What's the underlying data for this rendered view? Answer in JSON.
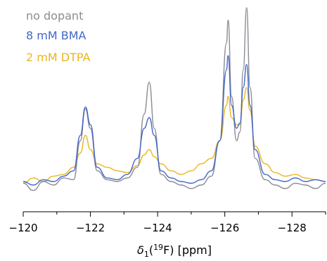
{
  "chart_data": {
    "type": "line",
    "title": "",
    "xlabel": {
      "prefix": "δ",
      "sub": "1",
      "paren_open": "(",
      "sup": "19",
      "element": "F",
      "paren_close": ")",
      "unit": " [ppm]"
    },
    "ylabel": "",
    "xlim": [
      -120,
      -129
    ],
    "x_reversed": true,
    "y_axis_visible": false,
    "grid": false,
    "legend_placement": "top-left",
    "x_ticks": [
      {
        "value": -120,
        "label": "−120"
      },
      {
        "value": -122,
        "label": "−122"
      },
      {
        "value": -124,
        "label": "−124"
      },
      {
        "value": -126,
        "label": "−126"
      },
      {
        "value": -128,
        "label": "−128"
      }
    ],
    "x_minor_ticks": [
      -121,
      -123,
      -125,
      -127,
      -129
    ],
    "series": [
      {
        "name": "no dopant",
        "color": "#8c8c94",
        "points": [
          [
            -120.0,
            0.01
          ],
          [
            -120.3,
            -0.03
          ],
          [
            -120.6,
            0.02
          ],
          [
            -120.9,
            0.0
          ],
          [
            -121.2,
            0.04
          ],
          [
            -121.5,
            0.03
          ],
          [
            -121.7,
            0.25
          ],
          [
            -121.85,
            0.43
          ],
          [
            -122.0,
            0.32
          ],
          [
            -122.2,
            0.08
          ],
          [
            -122.5,
            0.03
          ],
          [
            -122.8,
            0.02
          ],
          [
            -123.1,
            0.04
          ],
          [
            -123.4,
            0.1
          ],
          [
            -123.6,
            0.4
          ],
          [
            -123.75,
            0.58
          ],
          [
            -123.9,
            0.32
          ],
          [
            -124.1,
            0.06
          ],
          [
            -124.4,
            0.02
          ],
          [
            -124.7,
            0.0
          ],
          [
            -125.0,
            -0.02
          ],
          [
            -125.3,
            0.0
          ],
          [
            -125.6,
            0.05
          ],
          [
            -125.85,
            0.25
          ],
          [
            -126.05,
            0.8
          ],
          [
            -126.1,
            0.93
          ],
          [
            -126.2,
            0.5
          ],
          [
            -126.35,
            0.25
          ],
          [
            -126.45,
            0.3
          ],
          [
            -126.55,
            0.65
          ],
          [
            -126.65,
            1.0
          ],
          [
            -126.75,
            0.55
          ],
          [
            -126.9,
            0.15
          ],
          [
            -127.2,
            0.03
          ],
          [
            -127.5,
            0.0
          ],
          [
            -127.8,
            -0.02
          ],
          [
            -128.1,
            0.01
          ],
          [
            -128.4,
            0.0
          ],
          [
            -128.7,
            -0.02
          ],
          [
            -129.0,
            0.01
          ]
        ]
      },
      {
        "name": "8 mM BMA",
        "color": "#4267c8",
        "points": [
          [
            -120.0,
            0.02
          ],
          [
            -120.3,
            0.0
          ],
          [
            -120.6,
            0.03
          ],
          [
            -120.9,
            0.02
          ],
          [
            -121.2,
            0.05
          ],
          [
            -121.5,
            0.08
          ],
          [
            -121.7,
            0.28
          ],
          [
            -121.85,
            0.44
          ],
          [
            -122.0,
            0.34
          ],
          [
            -122.2,
            0.1
          ],
          [
            -122.5,
            0.04
          ],
          [
            -122.8,
            0.03
          ],
          [
            -123.1,
            0.06
          ],
          [
            -123.4,
            0.15
          ],
          [
            -123.6,
            0.32
          ],
          [
            -123.75,
            0.38
          ],
          [
            -123.9,
            0.28
          ],
          [
            -124.1,
            0.08
          ],
          [
            -124.4,
            0.04
          ],
          [
            -124.7,
            0.02
          ],
          [
            -125.0,
            0.01
          ],
          [
            -125.3,
            0.03
          ],
          [
            -125.6,
            0.08
          ],
          [
            -125.85,
            0.25
          ],
          [
            -126.05,
            0.65
          ],
          [
            -126.1,
            0.73
          ],
          [
            -126.2,
            0.45
          ],
          [
            -126.35,
            0.32
          ],
          [
            -126.45,
            0.35
          ],
          [
            -126.55,
            0.55
          ],
          [
            -126.65,
            0.68
          ],
          [
            -126.75,
            0.45
          ],
          [
            -126.9,
            0.2
          ],
          [
            -127.2,
            0.06
          ],
          [
            -127.5,
            0.03
          ],
          [
            -127.8,
            0.02
          ],
          [
            -128.1,
            0.04
          ],
          [
            -128.4,
            0.02
          ],
          [
            -128.7,
            0.03
          ],
          [
            -129.0,
            0.02
          ]
        ]
      },
      {
        "name": "2 mM DTPA",
        "color": "#eab61f",
        "points": [
          [
            -120.0,
            0.01
          ],
          [
            -120.3,
            0.04
          ],
          [
            -120.6,
            0.02
          ],
          [
            -120.9,
            0.05
          ],
          [
            -121.2,
            0.06
          ],
          [
            -121.5,
            0.1
          ],
          [
            -121.7,
            0.18
          ],
          [
            -121.85,
            0.28
          ],
          [
            -122.0,
            0.2
          ],
          [
            -122.2,
            0.12
          ],
          [
            -122.5,
            0.1
          ],
          [
            -122.8,
            0.08
          ],
          [
            -123.1,
            0.07
          ],
          [
            -123.4,
            0.11
          ],
          [
            -123.6,
            0.17
          ],
          [
            -123.75,
            0.2
          ],
          [
            -123.9,
            0.16
          ],
          [
            -124.1,
            0.12
          ],
          [
            -124.4,
            0.08
          ],
          [
            -124.7,
            0.06
          ],
          [
            -125.0,
            0.08
          ],
          [
            -125.3,
            0.12
          ],
          [
            -125.6,
            0.15
          ],
          [
            -125.85,
            0.25
          ],
          [
            -126.05,
            0.45
          ],
          [
            -126.1,
            0.5
          ],
          [
            -126.2,
            0.38
          ],
          [
            -126.35,
            0.34
          ],
          [
            -126.45,
            0.34
          ],
          [
            -126.55,
            0.48
          ],
          [
            -126.65,
            0.55
          ],
          [
            -126.75,
            0.42
          ],
          [
            -126.9,
            0.22
          ],
          [
            -127.2,
            0.12
          ],
          [
            -127.5,
            0.07
          ],
          [
            -127.8,
            0.05
          ],
          [
            -128.1,
            0.06
          ],
          [
            -128.4,
            0.04
          ],
          [
            -128.7,
            0.03
          ],
          [
            -129.0,
            0.02
          ]
        ]
      }
    ]
  }
}
